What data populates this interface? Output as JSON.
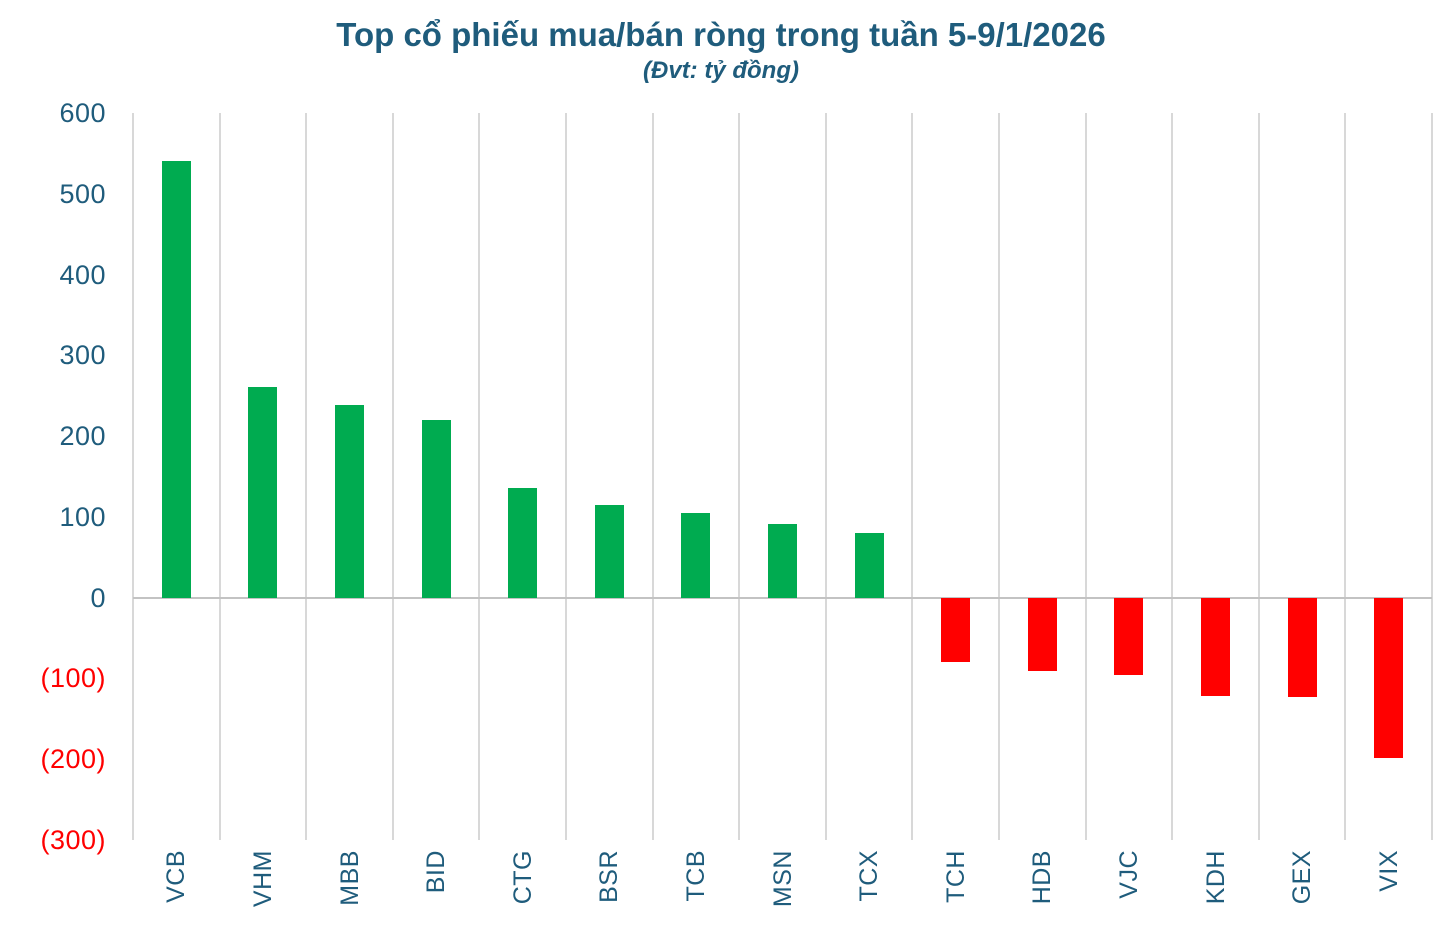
{
  "chart_data": {
    "type": "bar",
    "title": "Top cổ phiếu mua/bán ròng trong tuần 5-9/1/2026",
    "subtitle": "(Đvt: tỷ đồng)",
    "xlabel": "",
    "ylabel": "",
    "categories": [
      "VCB",
      "VHM",
      "MBB",
      "BID",
      "CTG",
      "BSR",
      "TCB",
      "MSN",
      "TCX",
      "TCH",
      "HDB",
      "VJC",
      "KDH",
      "GEX",
      "VIX"
    ],
    "values": [
      540,
      261,
      238,
      220,
      136,
      115,
      105,
      91,
      80,
      -80,
      -91,
      -96,
      -122,
      -123,
      -198
    ],
    "ylim": [
      -300,
      600
    ],
    "ytick_step": 100,
    "yticks": [
      {
        "label": "600",
        "value": 600,
        "negative": false
      },
      {
        "label": "500",
        "value": 500,
        "negative": false
      },
      {
        "label": "400",
        "value": 400,
        "negative": false
      },
      {
        "label": "300",
        "value": 300,
        "negative": false
      },
      {
        "label": "200",
        "value": 200,
        "negative": false
      },
      {
        "label": "100",
        "value": 100,
        "negative": false
      },
      {
        "label": "0",
        "value": 0,
        "negative": false
      },
      {
        "label": "(100)",
        "value": -100,
        "negative": true
      },
      {
        "label": "(200)",
        "value": -200,
        "negative": true
      },
      {
        "label": "(300)",
        "value": -300,
        "negative": true
      }
    ],
    "positive_color": "#00ab50",
    "negative_color": "#ff0000",
    "text_color": "#1f5c7c",
    "negative_label_color": "#ff0000",
    "grid": "vertical category separators only",
    "legend": "none"
  }
}
